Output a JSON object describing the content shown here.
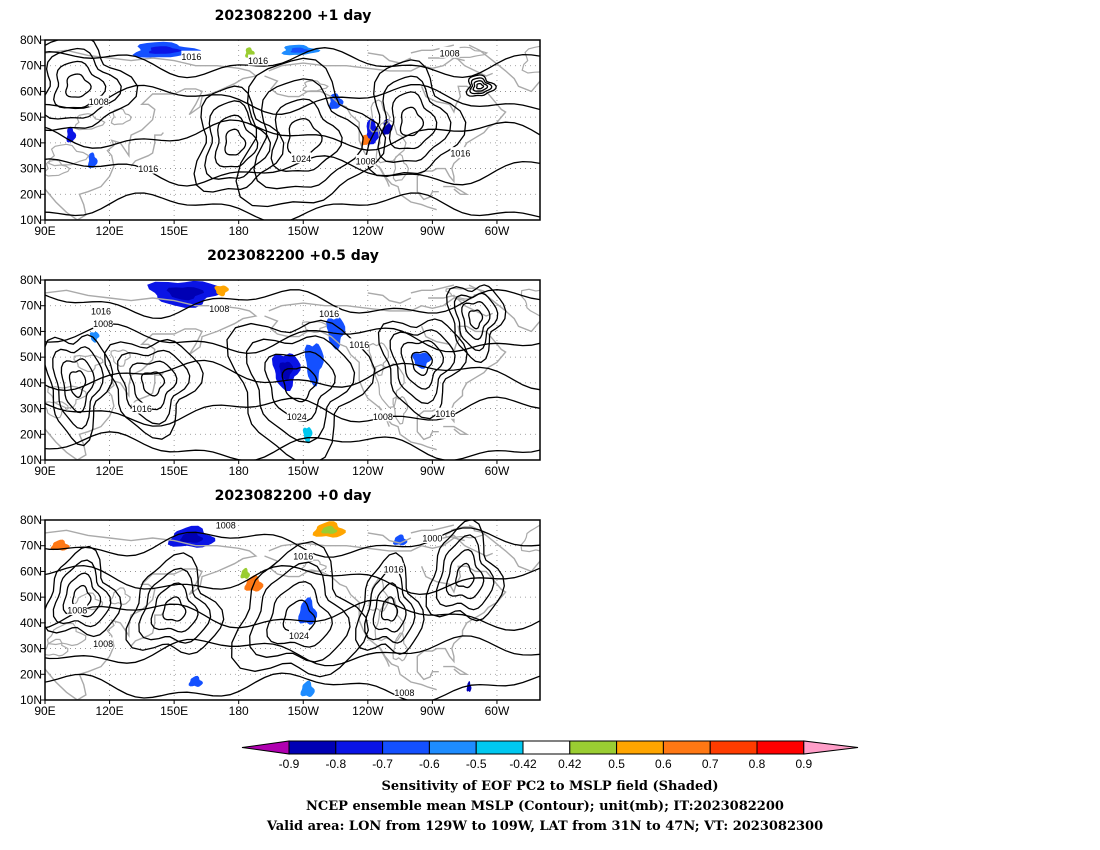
{
  "panels": [
    {
      "title": "2023082200  +1 day",
      "contour_labels": [
        {
          "text": "1016",
          "lon": 158,
          "lat": 73.5
        },
        {
          "text": "1016",
          "lon": -171,
          "lat": 72
        },
        {
          "text": "1008",
          "lon": -82,
          "lat": 75
        },
        {
          "text": "1008",
          "lon": 115,
          "lat": 56
        },
        {
          "text": "1016",
          "lon": 138,
          "lat": 30
        },
        {
          "text": "1024",
          "lon": -151,
          "lat": 34
        },
        {
          "text": "1008",
          "lon": -121,
          "lat": 33
        },
        {
          "text": "1016",
          "lon": -77,
          "lat": 36
        }
      ]
    },
    {
      "title": "2023082200  +0.5 day",
      "contour_labels": [
        {
          "text": "1008",
          "lon": 171,
          "lat": 69
        },
        {
          "text": "1016",
          "lon": 116,
          "lat": 68
        },
        {
          "text": "1008",
          "lon": 117,
          "lat": 63
        },
        {
          "text": "1016",
          "lon": -138,
          "lat": 67
        },
        {
          "text": "1016",
          "lon": -124,
          "lat": 55
        },
        {
          "text": "1024",
          "lon": -153,
          "lat": 27
        },
        {
          "text": "1016",
          "lon": 135,
          "lat": 30
        },
        {
          "text": "1008",
          "lon": -113,
          "lat": 27
        },
        {
          "text": "1016",
          "lon": -84,
          "lat": 28
        }
      ]
    },
    {
      "title": "2023082200  +0 day",
      "contour_labels": [
        {
          "text": "1008",
          "lon": 174,
          "lat": 78
        },
        {
          "text": "1000",
          "lon": -90,
          "lat": 73
        },
        {
          "text": "1016",
          "lon": -150,
          "lat": 66
        },
        {
          "text": "1016",
          "lon": -108,
          "lat": 61
        },
        {
          "text": "1008",
          "lon": 105,
          "lat": 45
        },
        {
          "text": "1024",
          "lon": -152,
          "lat": 35
        },
        {
          "text": "1008",
          "lon": 117,
          "lat": 32
        },
        {
          "text": "1008",
          "lon": -103,
          "lat": 13
        }
      ]
    }
  ],
  "lat_ticks": [
    "80N",
    "70N",
    "60N",
    "50N",
    "40N",
    "30N",
    "20N",
    "10N"
  ],
  "lon_ticks": [
    "90E",
    "120E",
    "150E",
    "180",
    "150W",
    "120W",
    "90W",
    "60W"
  ],
  "map_extent": {
    "lon_min": 90,
    "lon_max": 320,
    "lat_min": 10,
    "lat_max": 80
  },
  "colorbar": {
    "labels": [
      "-0.9",
      "-0.8",
      "-0.7",
      "-0.6",
      "-0.5",
      "-0.42",
      "0.42",
      "0.5",
      "0.6",
      "0.7",
      "0.8",
      "0.9"
    ],
    "colors": [
      "#b000b0",
      "#0000b4",
      "#0a14e6",
      "#1450ff",
      "#1e8cff",
      "#00c8f0",
      "#ffffff",
      "#9acd32",
      "#ffa500",
      "#ff7814",
      "#ff3c00",
      "#ff0000",
      "#ff9ec8"
    ]
  },
  "shading_blobs": [
    [
      {
        "lon": 145,
        "lat": 76,
        "rx": 14,
        "ry": 3,
        "c": 3
      },
      {
        "lon": 102,
        "lat": 43,
        "rx": 2,
        "ry": 3,
        "c": 2
      },
      {
        "lon": 112,
        "lat": 33,
        "rx": 2,
        "ry": 3,
        "c": 3
      },
      {
        "lon": -118,
        "lat": 44,
        "rx": 3,
        "ry": 5,
        "c": 2
      },
      {
        "lon": -121,
        "lat": 41,
        "rx": 2,
        "ry": 2,
        "c": 9
      },
      {
        "lon": -111,
        "lat": 46,
        "rx": 2,
        "ry": 3,
        "c": 1
      },
      {
        "lon": -135,
        "lat": 56,
        "rx": 3,
        "ry": 3,
        "c": 3
      },
      {
        "lon": -152,
        "lat": 76,
        "rx": 8,
        "ry": 2,
        "c": 4
      },
      {
        "lon": -175,
        "lat": 75,
        "rx": 2,
        "ry": 2,
        "c": 7
      }
    ],
    [
      {
        "lon": 155,
        "lat": 75,
        "rx": 16,
        "ry": 5,
        "c": 2
      },
      {
        "lon": -158,
        "lat": 45,
        "rx": 6,
        "ry": 7,
        "c": 2
      },
      {
        "lon": -145,
        "lat": 48,
        "rx": 4,
        "ry": 8,
        "c": 3
      },
      {
        "lon": -135,
        "lat": 60,
        "rx": 4,
        "ry": 6,
        "c": 3
      },
      {
        "lon": -95,
        "lat": 49,
        "rx": 4,
        "ry": 3,
        "c": 3
      },
      {
        "lon": -148,
        "lat": 20,
        "rx": 2,
        "ry": 3,
        "c": 5
      },
      {
        "lon": 113,
        "lat": 58,
        "rx": 2,
        "ry": 2,
        "c": 4
      },
      {
        "lon": 172,
        "lat": 76,
        "rx": 3,
        "ry": 2,
        "c": 8
      }
    ],
    [
      {
        "lon": 158,
        "lat": 73,
        "rx": 10,
        "ry": 4,
        "c": 2
      },
      {
        "lon": -173,
        "lat": 55,
        "rx": 4,
        "ry": 3,
        "c": 9
      },
      {
        "lon": -177,
        "lat": 59,
        "rx": 2,
        "ry": 2,
        "c": 7
      },
      {
        "lon": -148,
        "lat": 44,
        "rx": 4,
        "ry": 5,
        "c": 3
      },
      {
        "lon": -138,
        "lat": 76,
        "rx": 7,
        "ry": 3,
        "c": 8
      },
      {
        "lon": 97,
        "lat": 70,
        "rx": 4,
        "ry": 2,
        "c": 9
      },
      {
        "lon": -105,
        "lat": 72,
        "rx": 3,
        "ry": 2,
        "c": 3
      },
      {
        "lon": 160,
        "lat": 17,
        "rx": 3,
        "ry": 2,
        "c": 3
      },
      {
        "lon": -148,
        "lat": 14,
        "rx": 3,
        "ry": 3,
        "c": 4
      },
      {
        "lon": -73,
        "lat": 15,
        "rx": 1,
        "ry": 2,
        "c": 1
      }
    ]
  ],
  "contour_centers": [
    [
      {
        "lon": -150,
        "lat": 42,
        "rx": 30,
        "ry": 28
      },
      {
        "lon": -68,
        "lat": 62,
        "rx": 6,
        "ry": 4
      },
      {
        "lon": 105,
        "lat": 62,
        "rx": 22,
        "ry": 18
      },
      {
        "lon": -100,
        "lat": 48,
        "rx": 20,
        "ry": 22
      },
      {
        "lon": 178,
        "lat": 40,
        "rx": 18,
        "ry": 20
      }
    ],
    [
      {
        "lon": -152,
        "lat": 40,
        "rx": 30,
        "ry": 26
      },
      {
        "lon": -95,
        "lat": 48,
        "rx": 18,
        "ry": 18
      },
      {
        "lon": 140,
        "lat": 40,
        "rx": 20,
        "ry": 18
      },
      {
        "lon": -70,
        "lat": 65,
        "rx": 12,
        "ry": 14
      },
      {
        "lon": 105,
        "lat": 40,
        "rx": 14,
        "ry": 20
      }
    ],
    [
      {
        "lon": -152,
        "lat": 42,
        "rx": 28,
        "ry": 24
      },
      {
        "lon": -75,
        "lat": 58,
        "rx": 16,
        "ry": 18
      },
      {
        "lon": 107,
        "lat": 50,
        "rx": 16,
        "ry": 16
      },
      {
        "lon": 150,
        "lat": 45,
        "rx": 20,
        "ry": 18
      },
      {
        "lon": -110,
        "lat": 45,
        "rx": 14,
        "ry": 18
      }
    ]
  ],
  "caption": {
    "line1": "Sensitivity of EOF PC2 to MSLP field (Shaded)",
    "line2": "NCEP ensemble mean MSLP (Contour); unit(mb); IT:2023082200",
    "line3": "Valid area: LON from 129W to 109W, LAT from 31N to 47N; VT: 2023082300"
  }
}
